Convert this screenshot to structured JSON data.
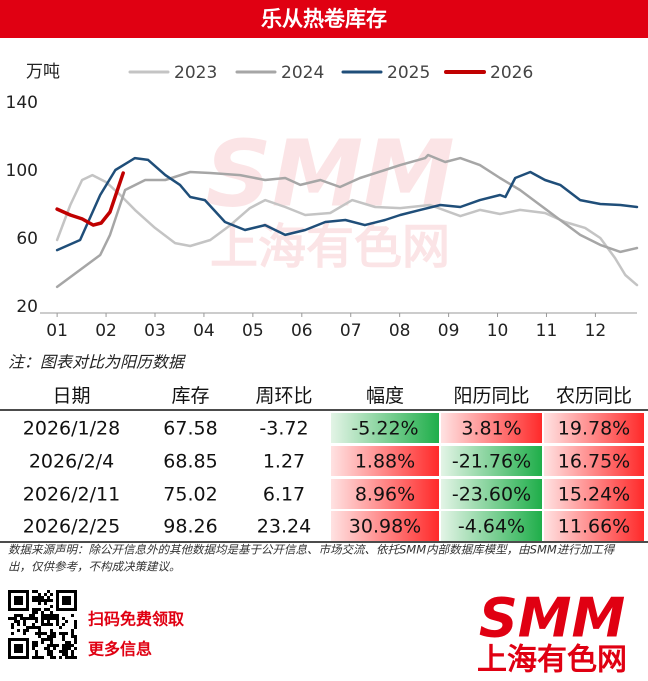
{
  "header": {
    "title": "乐从热卷库存"
  },
  "watermark": {
    "mark": "SMM",
    "name": "上海有色网"
  },
  "chart_data": {
    "type": "line",
    "unit_label": "万吨",
    "xlim": [
      0.65,
      12.85
    ],
    "xticks": [
      {
        "value": 1,
        "label": "01"
      },
      {
        "value": 2,
        "label": "02"
      },
      {
        "value": 3,
        "label": "03"
      },
      {
        "value": 4,
        "label": "04"
      },
      {
        "value": 5,
        "label": "05"
      },
      {
        "value": 6,
        "label": "06"
      },
      {
        "value": 7,
        "label": "07"
      },
      {
        "value": 8,
        "label": "08"
      },
      {
        "value": 9,
        "label": "09"
      },
      {
        "value": 10,
        "label": "10"
      },
      {
        "value": 11,
        "label": "11"
      },
      {
        "value": 12,
        "label": "12"
      }
    ],
    "ylim": [
      20,
      140
    ],
    "yticks": [
      20,
      60,
      100,
      140
    ],
    "grid": false,
    "series": [
      {
        "name": "2023",
        "color": "#c4c4c4",
        "width": 2.5,
        "x": [
          1.0,
          1.27,
          1.51,
          1.72,
          2.0,
          2.29,
          2.59,
          3.0,
          3.41,
          3.72,
          4.13,
          4.54,
          4.94,
          5.25,
          5.66,
          6.07,
          6.58,
          7.03,
          7.5,
          8.01,
          8.62,
          9.24,
          9.64,
          10.05,
          10.46,
          10.97,
          11.38,
          11.79,
          12.1,
          12.4,
          12.61,
          12.85
        ],
        "values": [
          59.4,
          80,
          94.7,
          97.6,
          93.5,
          85.9,
          77.1,
          66.5,
          57.6,
          55.9,
          59.4,
          68.2,
          78.2,
          82.9,
          78.8,
          74.1,
          75.3,
          82.9,
          78.8,
          78.2,
          80,
          73.5,
          77.1,
          74.7,
          77.1,
          75.3,
          70,
          66.5,
          60.6,
          48.8,
          38.8,
          32.9
        ]
      },
      {
        "name": "2024",
        "color": "#a6a6a6",
        "width": 2.5,
        "x": [
          1.0,
          1.47,
          1.88,
          2.08,
          2.39,
          2.8,
          3.21,
          3.72,
          4.13,
          4.74,
          5.25,
          5.66,
          5.97,
          6.38,
          6.78,
          7.19,
          7.7,
          8.01,
          8.52,
          8.58,
          8.93,
          9.24,
          9.64,
          10.05,
          10.46,
          10.87,
          11.28,
          11.69,
          12.1,
          12.51,
          12.85
        ],
        "values": [
          31.8,
          41.8,
          50.6,
          62.4,
          88.8,
          94.7,
          94.7,
          99.4,
          98.8,
          97.6,
          94.7,
          95.9,
          91.8,
          94.7,
          90.6,
          95.9,
          100.6,
          103.5,
          107.6,
          109.4,
          105.3,
          107.6,
          103.5,
          95.9,
          88.8,
          80,
          71.2,
          62.4,
          56.5,
          52.4,
          54.7
        ]
      },
      {
        "name": "2025",
        "color": "#1f4e79",
        "width": 2.5,
        "x": [
          1.0,
          1.47,
          1.88,
          2.19,
          2.59,
          2.86,
          3.21,
          3.51,
          3.72,
          4.02,
          4.43,
          4.84,
          5.25,
          5.66,
          6.07,
          6.48,
          6.89,
          7.29,
          7.7,
          8.01,
          8.42,
          8.83,
          9.24,
          9.64,
          10.05,
          10.16,
          10.36,
          10.67,
          10.97,
          11.28,
          11.69,
          12.1,
          12.51,
          12.85
        ],
        "values": [
          53.5,
          59.4,
          85.9,
          100.6,
          107.6,
          106.5,
          97.6,
          91.8,
          84.7,
          82.9,
          70,
          65.3,
          68.2,
          62.4,
          65.3,
          70,
          71.2,
          68.2,
          71.2,
          74.1,
          77.1,
          80,
          78.8,
          82.9,
          85.9,
          84.7,
          95.9,
          99.4,
          94.7,
          91.8,
          82.9,
          80.6,
          80,
          78.8
        ]
      },
      {
        "name": "2026",
        "color": "#c00000",
        "width": 3.5,
        "x": [
          1.0,
          1.27,
          1.51,
          1.74,
          1.9,
          2.08,
          2.35
        ],
        "values": [
          77.6,
          74.1,
          71.8,
          68.2,
          69.4,
          75.9,
          98.8
        ]
      }
    ]
  },
  "note": "注：图表对比为阳历数据",
  "table": {
    "columns": [
      "日期",
      "库存",
      "周环比",
      "幅度",
      "阳历同比",
      "农历同比"
    ],
    "rows": [
      [
        "2026/1/28",
        "67.58",
        "-3.72",
        "-5.22%",
        "3.81%",
        "19.78%"
      ],
      [
        "2026/2/4",
        "68.85",
        "1.27",
        "1.88%",
        "-21.76%",
        "16.75%"
      ],
      [
        "2026/2/11",
        "75.02",
        "6.17",
        "8.96%",
        "-23.60%",
        "15.24%"
      ],
      [
        "2026/2/25",
        "98.26",
        "23.24",
        "30.98%",
        "-4.64%",
        "11.66%"
      ]
    ]
  },
  "footer": {
    "disclaimer": [
      "数据来源声明：除公开信息外的其他数据均是基于公开信息、市场交流、依托SMM内部数据库模型，由SMM进行加工得",
      "出，仅供参考，不构成决策建议。"
    ],
    "qr_caption": [
      "扫码免费领取",
      "更多信息"
    ],
    "logo": {
      "mark": "SMM",
      "name": "上海有色网"
    }
  }
}
